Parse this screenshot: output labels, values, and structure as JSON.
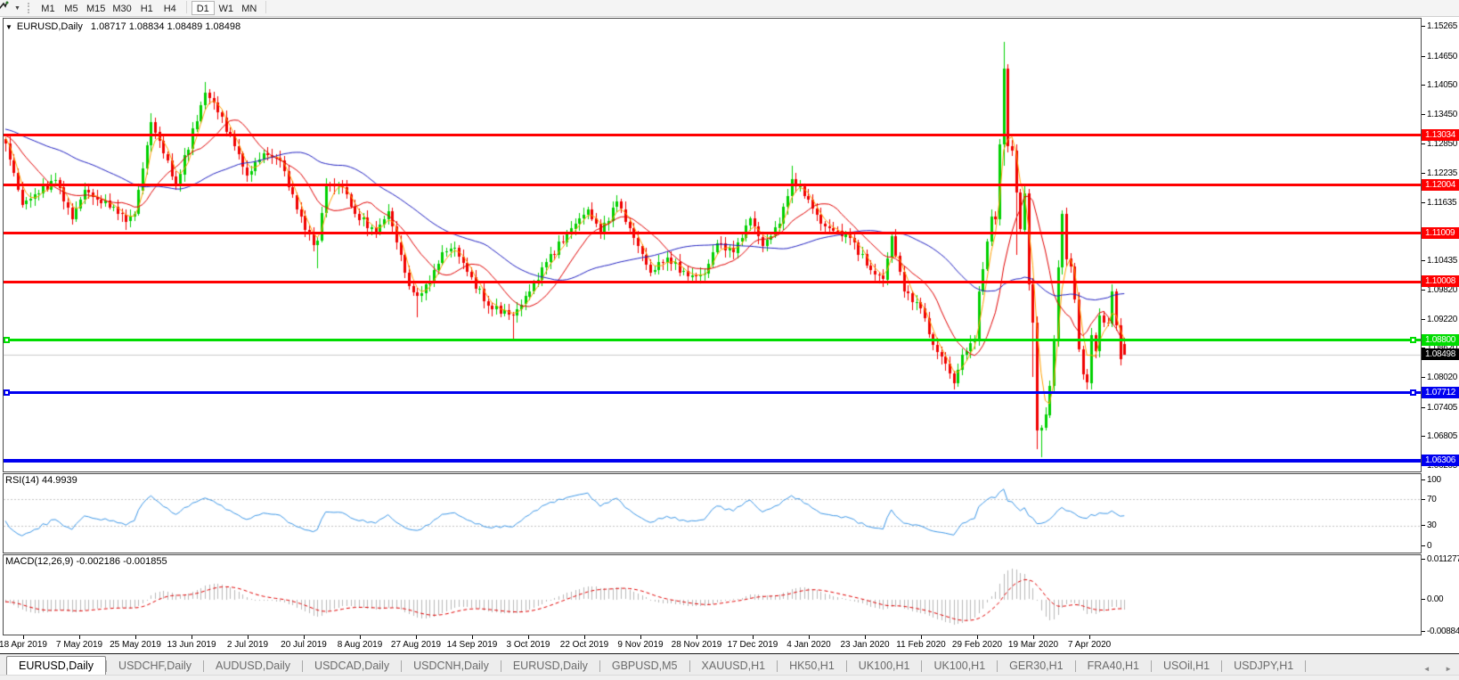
{
  "toolbar": {
    "timeframes": [
      "M1",
      "M5",
      "M15",
      "M30",
      "H1",
      "H4",
      "D1",
      "W1",
      "MN"
    ],
    "selected": "D1"
  },
  "chart": {
    "title": {
      "symbol": "EURUSD,Daily",
      "ohlc": "1.08717 1.08834 1.08489 1.08498"
    }
  },
  "rsi": {
    "label": "RSI(14) 44.9939",
    "period": 14,
    "value": "44.9939",
    "levels": [
      30,
      70
    ],
    "axis_labels": [
      "100",
      "70",
      "30",
      "0"
    ],
    "axis_values": [
      100,
      70,
      30,
      0
    ]
  },
  "macd": {
    "label": "MACD(12,26,9) -0.002186 -0.001855",
    "main_value": "-0.002186",
    "signal_value": "-0.001855",
    "axis_labels": [
      "0.011277",
      "0.00",
      "-0.008845"
    ],
    "axis_values": [
      0.011277,
      0,
      -0.008845
    ]
  },
  "x_axis": {
    "labels": [
      "18 Apr 2019",
      "7 May 2019",
      "25 May 2019",
      "13 Jun 2019",
      "2 Jul 2019",
      "20 Jul 2019",
      "8 Aug 2019",
      "27 Aug 2019",
      "14 Sep 2019",
      "3 Oct 2019",
      "22 Oct 2019",
      "9 Nov 2019",
      "28 Nov 2019",
      "17 Dec 2019",
      "4 Jan 2020",
      "23 Jan 2020",
      "11 Feb 2020",
      "29 Feb 2020",
      "19 Mar 2020",
      "7 Apr 2020"
    ]
  },
  "tabs": {
    "items": [
      {
        "label": "EURUSD,Daily",
        "active": true
      },
      {
        "label": "USDCHF,Daily",
        "active": false
      },
      {
        "label": "AUDUSD,Daily",
        "active": false
      },
      {
        "label": "USDCAD,Daily",
        "active": false
      },
      {
        "label": "USDCNH,Daily",
        "active": false
      },
      {
        "label": "EURUSD,Daily",
        "active": false
      },
      {
        "label": "GBPUSD,M5",
        "active": false
      },
      {
        "label": "XAUUSD,H1",
        "active": false
      },
      {
        "label": "HK50,H1",
        "active": false
      },
      {
        "label": "UK100,H1",
        "active": false
      },
      {
        "label": "UK100,H1",
        "active": false
      },
      {
        "label": "GER30,H1",
        "active": false
      },
      {
        "label": "FRA40,H1",
        "active": false
      },
      {
        "label": "USOil,H1",
        "active": false
      },
      {
        "label": "USDJPY,H1",
        "active": false
      }
    ]
  },
  "colors": {
    "candle_up": "#00D000",
    "candle_down": "#F00000",
    "ma_fast": "#FFA000",
    "ma_mid": "#E00000",
    "ma_slow": "#2020C0",
    "resistance": "#FF0000",
    "support_green": "#00DC00",
    "support_blue": "#0000F0",
    "current_line": "#CBCBCB",
    "current_badge": "#000000",
    "rsi_line": "#3C96E6",
    "level_dash": "#C4C4C4",
    "macd_hist": "#B8B8B8",
    "macd_signal": "#E00000"
  },
  "chart_data": {
    "type": "candlestick",
    "symbol": "EURUSD",
    "timeframe": "Daily",
    "price_axis": {
      "min": 1.0608,
      "max": 1.1543,
      "ticks": [
        "1.15265",
        "1.14650",
        "1.14050",
        "1.13450",
        "1.12850",
        "1.12235",
        "1.11635",
        "1.10435",
        "1.09820",
        "1.09220",
        "1.08620",
        "1.08020",
        "1.07405",
        "1.06805",
        "1.06205"
      ]
    },
    "current_price": 1.08498,
    "last_candle": {
      "o": 1.08717,
      "h": 1.08834,
      "l": 1.08489,
      "c": 1.08498
    },
    "horizontal_lines": [
      {
        "label": "1.13034",
        "price": 1.13034,
        "role": "resistance",
        "color_key": "resistance",
        "thickness": 3,
        "selected": false
      },
      {
        "label": "1.12004",
        "price": 1.12004,
        "role": "resistance",
        "color_key": "resistance",
        "thickness": 3,
        "selected": false
      },
      {
        "label": "1.11009",
        "price": 1.11009,
        "role": "resistance",
        "color_key": "resistance",
        "thickness": 3,
        "selected": false
      },
      {
        "label": "1.10008",
        "price": 1.10008,
        "role": "resistance",
        "color_key": "resistance",
        "thickness": 3,
        "selected": false
      },
      {
        "label": "1.08800",
        "price": 1.088,
        "role": "support",
        "color_key": "support_green",
        "thickness": 3,
        "selected": true
      },
      {
        "label": "1.07712",
        "price": 1.07712,
        "role": "support",
        "color_key": "support_blue",
        "thickness": 3,
        "selected": true
      },
      {
        "label": "1.06306",
        "price": 1.06306,
        "role": "support",
        "color_key": "support_blue",
        "thickness": 4,
        "selected": false
      }
    ],
    "moving_averages": [
      {
        "name": "fast",
        "type": "lwma",
        "period": 5,
        "color_key": "ma_fast"
      },
      {
        "name": "mid",
        "type": "sma",
        "period": 12,
        "color_key": "ma_mid"
      },
      {
        "name": "slow",
        "type": "sma",
        "period": 40,
        "color_key": "ma_slow"
      }
    ],
    "close_anchors": [
      [
        0,
        1.1285
      ],
      [
        4,
        1.116
      ],
      [
        7,
        1.118
      ],
      [
        12,
        1.121
      ],
      [
        16,
        1.113
      ],
      [
        19,
        1.119
      ],
      [
        22,
        1.117
      ],
      [
        26,
        1.1155
      ],
      [
        29,
        1.1125,
        1.1107
      ],
      [
        31,
        1.114
      ],
      [
        35,
        1.133,
        null,
        1.1348
      ],
      [
        37,
        1.129
      ],
      [
        41,
        1.12
      ],
      [
        48,
        1.139,
        null,
        1.1412
      ],
      [
        50,
        1.137
      ],
      [
        55,
        1.128
      ],
      [
        58,
        1.122
      ],
      [
        62,
        1.1265
      ],
      [
        66,
        1.125
      ],
      [
        70,
        1.115
      ],
      [
        74,
        1.1075
      ],
      [
        75,
        1.1085,
        1.1027
      ],
      [
        77,
        1.12
      ],
      [
        81,
        1.1195
      ],
      [
        84,
        1.114
      ],
      [
        89,
        1.11
      ],
      [
        92,
        1.1145
      ],
      [
        97,
        1.099
      ],
      [
        99,
        1.097,
        1.0926
      ],
      [
        102,
        1.1
      ],
      [
        105,
        1.106
      ],
      [
        108,
        1.107
      ],
      [
        111,
        1.102
      ],
      [
        116,
        1.095
      ],
      [
        122,
        1.093,
        1.0879
      ],
      [
        126,
        1.098
      ],
      [
        130,
        1.104
      ],
      [
        136,
        1.111
      ],
      [
        140,
        1.115
      ],
      [
        143,
        1.11
      ],
      [
        147,
        1.1165
      ],
      [
        151,
        1.109
      ],
      [
        155,
        1.102
      ],
      [
        159,
        1.105
      ],
      [
        164,
        1.101
      ],
      [
        168,
        1.1017
      ],
      [
        171,
        1.108
      ],
      [
        175,
        1.106
      ],
      [
        179,
        1.113
      ],
      [
        182,
        1.1075
      ],
      [
        186,
        1.112
      ],
      [
        189,
        1.1212,
        null,
        1.1239
      ],
      [
        193,
        1.117
      ],
      [
        196,
        1.112
      ],
      [
        199,
        1.1105
      ],
      [
        203,
        1.109
      ],
      [
        208,
        1.1023
      ],
      [
        211,
        1.1005
      ],
      [
        213,
        1.1093
      ],
      [
        216,
        1.098
      ],
      [
        220,
        1.0945
      ],
      [
        223,
        1.087
      ],
      [
        226,
        1.083
      ],
      [
        228,
        1.079,
        1.0778
      ],
      [
        230,
        1.085
      ],
      [
        233,
        1.088
      ],
      [
        234,
        1.098
      ],
      [
        235,
        1.1026
      ],
      [
        237,
        1.1135
      ],
      [
        238,
        1.113
      ],
      [
        239,
        1.1284
      ],
      [
        240,
        1.144,
        1.124,
        1.1495
      ],
      [
        241,
        1.128,
        null,
        1.145
      ],
      [
        242,
        1.127
      ],
      [
        243,
        1.1184,
        1.1055
      ],
      [
        244,
        1.1108
      ],
      [
        245,
        1.1183
      ],
      [
        246,
        1.0995
      ],
      [
        247,
        1.0915,
        1.0802
      ],
      [
        248,
        1.0692,
        1.0655
      ],
      [
        249,
        1.0698,
        1.0636
      ],
      [
        250,
        1.0725
      ],
      [
        251,
        1.0785
      ],
      [
        252,
        1.088
      ],
      [
        253,
        1.103
      ],
      [
        254,
        1.114,
        null,
        1.1147
      ],
      [
        255,
        1.1047
      ],
      [
        256,
        1.1031
      ],
      [
        257,
        1.0963
      ],
      [
        258,
        1.086
      ],
      [
        259,
        1.0808
      ],
      [
        260,
        1.0791
      ],
      [
        261,
        1.089
      ],
      [
        262,
        1.0856
      ],
      [
        263,
        1.093
      ],
      [
        264,
        1.0915
      ],
      [
        265,
        1.0914
      ],
      [
        266,
        1.098
      ],
      [
        267,
        1.091
      ],
      [
        268,
        1.084
      ],
      [
        269,
        1.08498
      ]
    ]
  }
}
